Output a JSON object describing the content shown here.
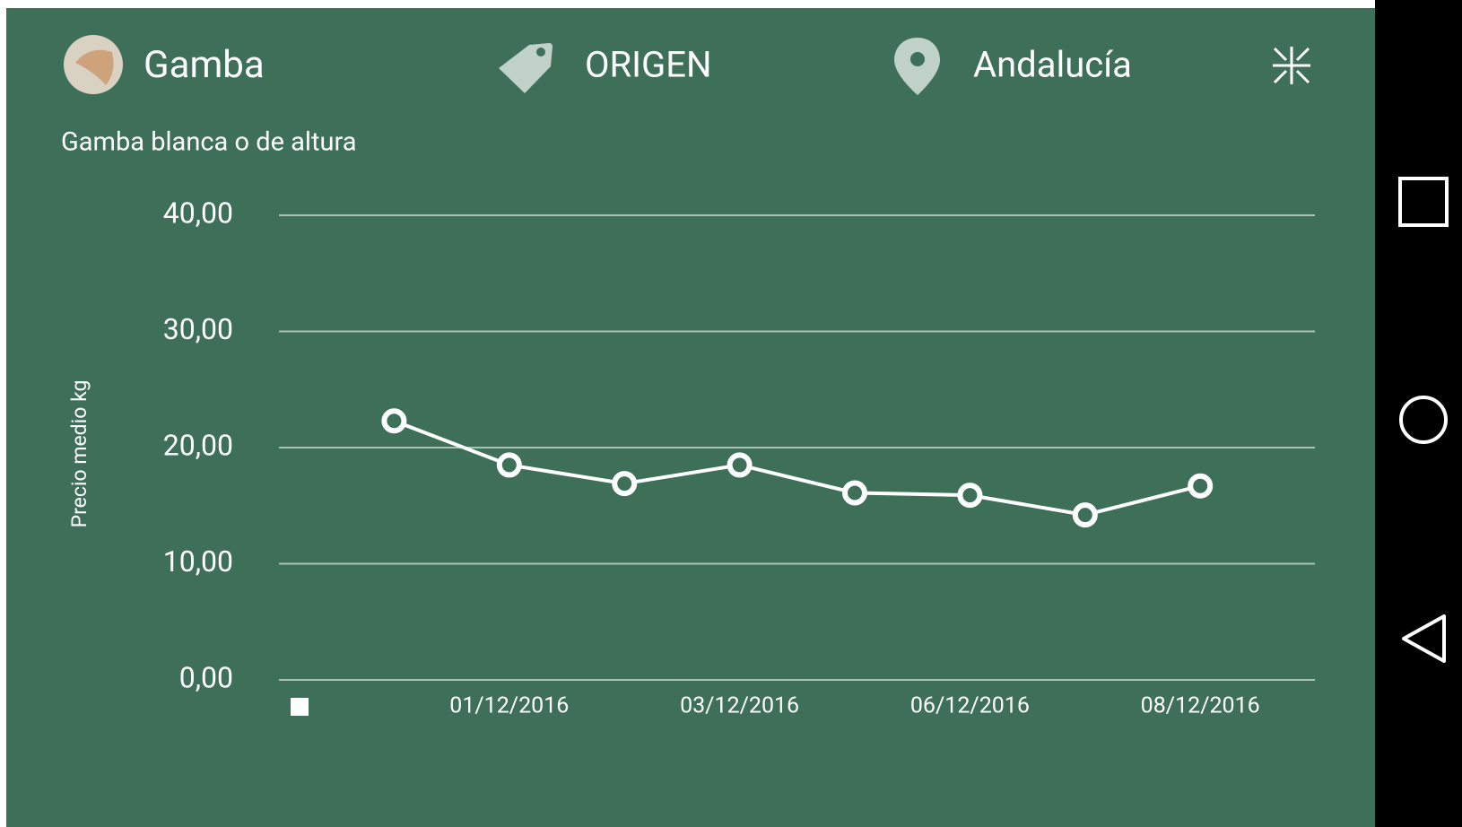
{
  "header": {
    "title": "Gamba",
    "filter": "ORIGEN",
    "region": "Andalucía"
  },
  "chart_data": {
    "type": "line",
    "title": "Gamba blanca o de altura",
    "y_label": "Precio medio kg",
    "categories": [
      null,
      "01/12/2016",
      null,
      "03/12/2016",
      null,
      "06/12/2016",
      null,
      "08/12/2016"
    ],
    "series": [
      {
        "color": "#ffffff",
        "values": [
          22.3,
          18.5,
          16.9,
          18.5,
          16.1,
          15.9,
          14.2,
          16.7
        ]
      }
    ],
    "ylim": [
      0,
      40
    ],
    "yticks": [
      {
        "value": 0,
        "label": "0,00"
      },
      {
        "value": 10,
        "label": "10,00"
      },
      {
        "value": 20,
        "label": "20,00"
      },
      {
        "value": 30,
        "label": "30,00"
      },
      {
        "value": 40,
        "label": "40,00"
      }
    ],
    "grid": true
  }
}
